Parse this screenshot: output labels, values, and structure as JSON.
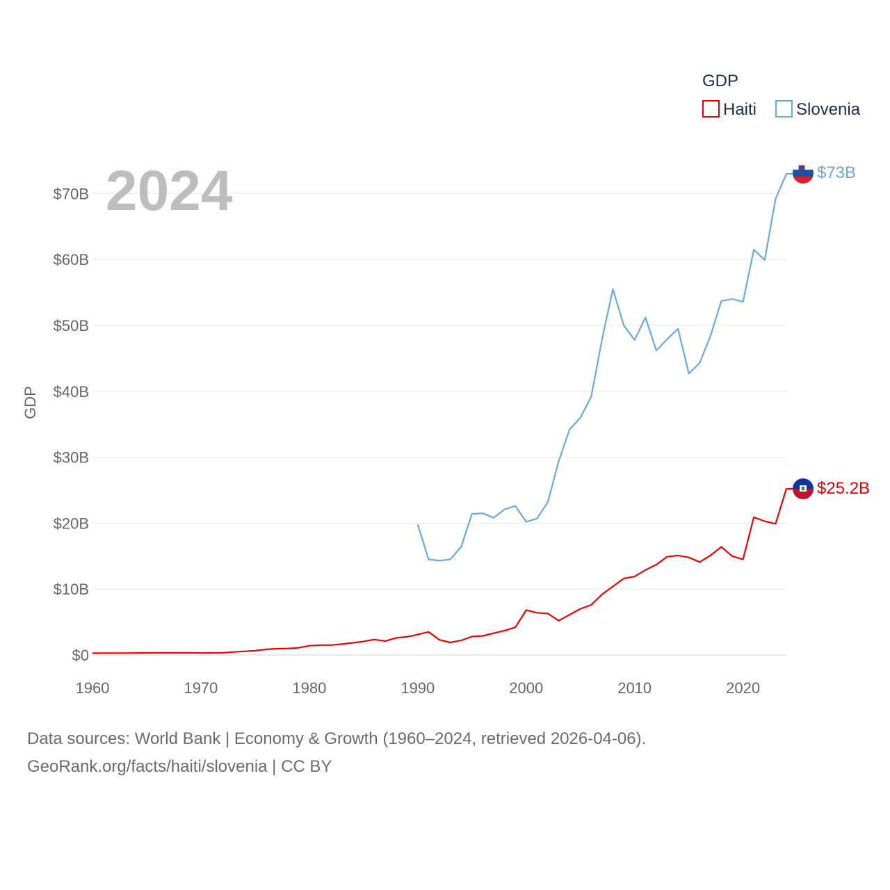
{
  "chart_data": {
    "type": "line",
    "title": "",
    "year_label": "2024",
    "ylabel": "GDP",
    "xlabel": "",
    "xlim": [
      1960,
      2024
    ],
    "ylim": [
      0,
      73
    ],
    "y_unit": "billion USD",
    "x_ticks": [
      1960,
      1970,
      1980,
      1990,
      2000,
      2010,
      2020
    ],
    "x_tick_labels": [
      "1960",
      "1970",
      "1980",
      "1990",
      "2000",
      "2010",
      "2020"
    ],
    "y_ticks": [
      0,
      10,
      20,
      30,
      40,
      50,
      60,
      70
    ],
    "y_tick_labels": [
      "$0",
      "$10B",
      "$20B",
      "$30B",
      "$40B",
      "$50B",
      "$60B",
      "$70B"
    ],
    "legend": {
      "title": "GDP",
      "position": "top-right"
    },
    "series": [
      {
        "name": "Haiti",
        "color": "#ee0000",
        "end_label": "$25.2B",
        "x": [
          1960,
          1961,
          1962,
          1963,
          1964,
          1965,
          1966,
          1967,
          1968,
          1969,
          1970,
          1971,
          1972,
          1973,
          1974,
          1975,
          1976,
          1977,
          1978,
          1979,
          1980,
          1981,
          1982,
          1983,
          1984,
          1985,
          1986,
          1987,
          1988,
          1989,
          1990,
          1991,
          1992,
          1993,
          1994,
          1995,
          1996,
          1997,
          1998,
          1999,
          2000,
          2001,
          2002,
          2003,
          2004,
          2005,
          2006,
          2007,
          2008,
          2009,
          2010,
          2011,
          2012,
          2013,
          2014,
          2015,
          2016,
          2017,
          2018,
          2019,
          2020,
          2021,
          2022,
          2023,
          2024
        ],
        "values": [
          0.27,
          0.28,
          0.28,
          0.29,
          0.3,
          0.32,
          0.33,
          0.33,
          0.33,
          0.34,
          0.3,
          0.32,
          0.33,
          0.45,
          0.55,
          0.65,
          0.85,
          0.95,
          0.98,
          1.1,
          1.4,
          1.5,
          1.5,
          1.65,
          1.85,
          2.05,
          2.35,
          2.1,
          2.6,
          2.75,
          3.1,
          3.5,
          2.3,
          1.9,
          2.2,
          2.8,
          2.9,
          3.3,
          3.7,
          4.2,
          6.8,
          6.4,
          6.3,
          5.2,
          6.1,
          7.0,
          7.6,
          9.2,
          10.4,
          11.6,
          11.9,
          12.9,
          13.7,
          14.9,
          15.1,
          14.8,
          14.1,
          15.1,
          16.4,
          15.0,
          14.5,
          20.9,
          20.3,
          19.9,
          25.2
        ]
      },
      {
        "name": "Slovenia",
        "color": "#6aa8e3",
        "end_label": "$73B",
        "x": [
          1990,
          1991,
          1992,
          1993,
          1994,
          1995,
          1996,
          1997,
          1998,
          1999,
          2000,
          2001,
          2002,
          2003,
          2004,
          2005,
          2006,
          2007,
          2008,
          2009,
          2010,
          2011,
          2012,
          2013,
          2014,
          2015,
          2016,
          2017,
          2018,
          2019,
          2020,
          2021,
          2022,
          2023,
          2024
        ],
        "values": [
          19.8,
          14.5,
          14.3,
          14.5,
          16.4,
          21.4,
          21.5,
          20.8,
          22.1,
          22.6,
          20.2,
          20.7,
          23.2,
          29.4,
          34.2,
          36.0,
          39.2,
          47.9,
          55.5,
          50.0,
          47.8,
          51.2,
          46.2,
          47.9,
          49.5,
          42.7,
          44.3,
          48.4,
          53.7,
          54.0,
          53.6,
          61.5,
          59.9,
          69.2,
          73.0
        ]
      }
    ]
  },
  "footer": {
    "line1": "Data sources: World Bank | Economy & Growth (1960–2024, retrieved 2026-04-06).",
    "line2": "GeoRank.org/facts/haiti/slovenia | CC BY"
  },
  "flags": {
    "slovenia": "slovenia-flag-icon",
    "haiti": "haiti-flag-icon"
  }
}
